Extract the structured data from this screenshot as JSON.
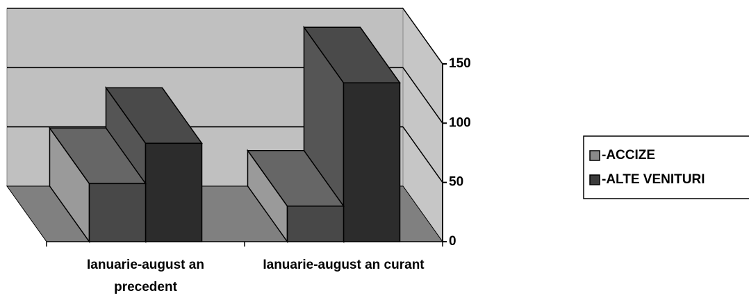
{
  "chart_data": {
    "type": "bar3d",
    "categories": [
      "Ianuarie-august an precedent",
      "Ianuarie-august an curant"
    ],
    "series": [
      {
        "name": "-ACCIZE",
        "color": "#8a8a8a",
        "values": [
          49,
          30
        ]
      },
      {
        "name": "-ALTE VENITURI",
        "color": "#3c3c3c",
        "values": [
          83,
          134
        ]
      }
    ],
    "ylim": [
      0,
      150
    ],
    "yticks": [
      0,
      50,
      100,
      150
    ],
    "grid": true,
    "legend": "right"
  }
}
